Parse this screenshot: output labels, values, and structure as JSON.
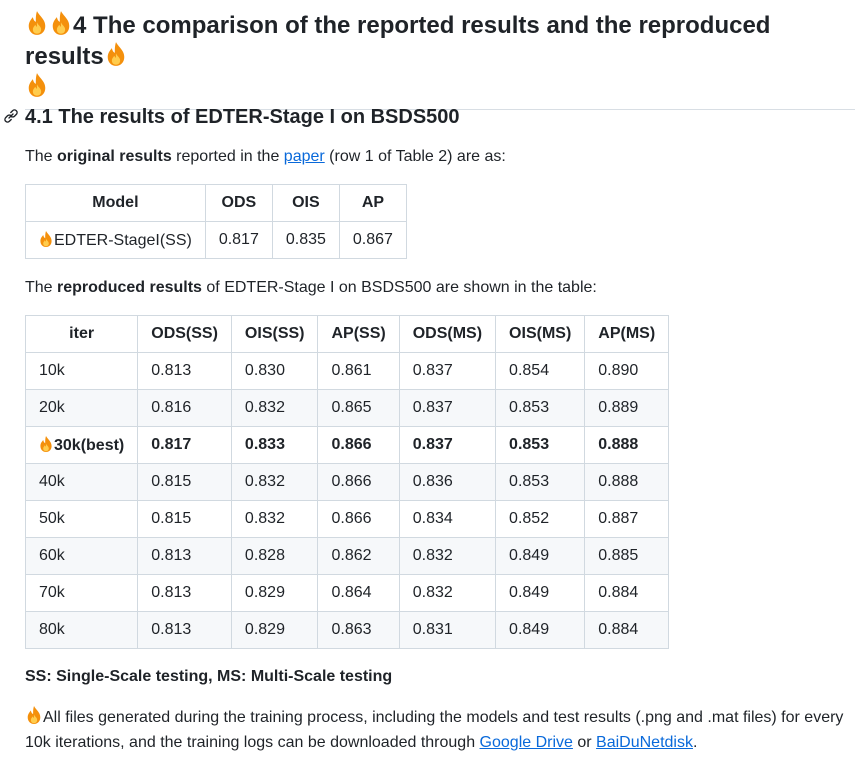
{
  "heading": {
    "prefix_num": "4",
    "title": " The comparison of the reported results and the reproduced results"
  },
  "section": {
    "title": "4.1 The results of EDTER-Stage I on BSDS500"
  },
  "intro": {
    "lead": "The ",
    "bold": "original results",
    "mid": " reported in the ",
    "link": "paper",
    "tail": " (row 1 of Table 2) are as:"
  },
  "original_table": {
    "headers": [
      "Model",
      "ODS",
      "OIS",
      "AP"
    ],
    "row": [
      "EDTER-StageI(SS)",
      "0.817",
      "0.835",
      "0.867"
    ]
  },
  "repro_intro": {
    "lead": "The ",
    "bold": "reproduced results",
    "tail": " of EDTER-Stage I on BSDS500 are shown in the table:"
  },
  "repro_table": {
    "headers": [
      "iter",
      "ODS(SS)",
      "OIS(SS)",
      "AP(SS)",
      "ODS(MS)",
      "OIS(MS)",
      "AP(MS)"
    ],
    "rows": [
      [
        "10k",
        "0.813",
        "0.830",
        "0.861",
        "0.837",
        "0.854",
        "0.890"
      ],
      [
        "20k",
        "0.816",
        "0.832",
        "0.865",
        "0.837",
        "0.853",
        "0.889"
      ],
      [
        "30k(best)",
        "0.817",
        "0.833",
        "0.866",
        "0.837",
        "0.853",
        "0.888"
      ],
      [
        "40k",
        "0.815",
        "0.832",
        "0.866",
        "0.836",
        "0.853",
        "0.888"
      ],
      [
        "50k",
        "0.815",
        "0.832",
        "0.866",
        "0.834",
        "0.852",
        "0.887"
      ],
      [
        "60k",
        "0.813",
        "0.828",
        "0.862",
        "0.832",
        "0.849",
        "0.885"
      ],
      [
        "70k",
        "0.813",
        "0.829",
        "0.864",
        "0.832",
        "0.849",
        "0.884"
      ],
      [
        "80k",
        "0.813",
        "0.829",
        "0.863",
        "0.831",
        "0.849",
        "0.884"
      ]
    ]
  },
  "note": "SS: Single-Scale testing, MS: Multi-Scale testing",
  "files": {
    "text": "All files generated during the training process, including the models and test results (.png and .mat files) for every 10k iterations, and the training logs can be downloaded through ",
    "link1": "Google Drive",
    "or": " or ",
    "link2": "BaiDuNetdisk",
    "end": "."
  },
  "colors": {
    "link": "#0969da",
    "flame_outer": "#f4900c",
    "flame_inner": "#ffcc4d"
  },
  "icons": [
    "fire-icon",
    "link-icon"
  ]
}
